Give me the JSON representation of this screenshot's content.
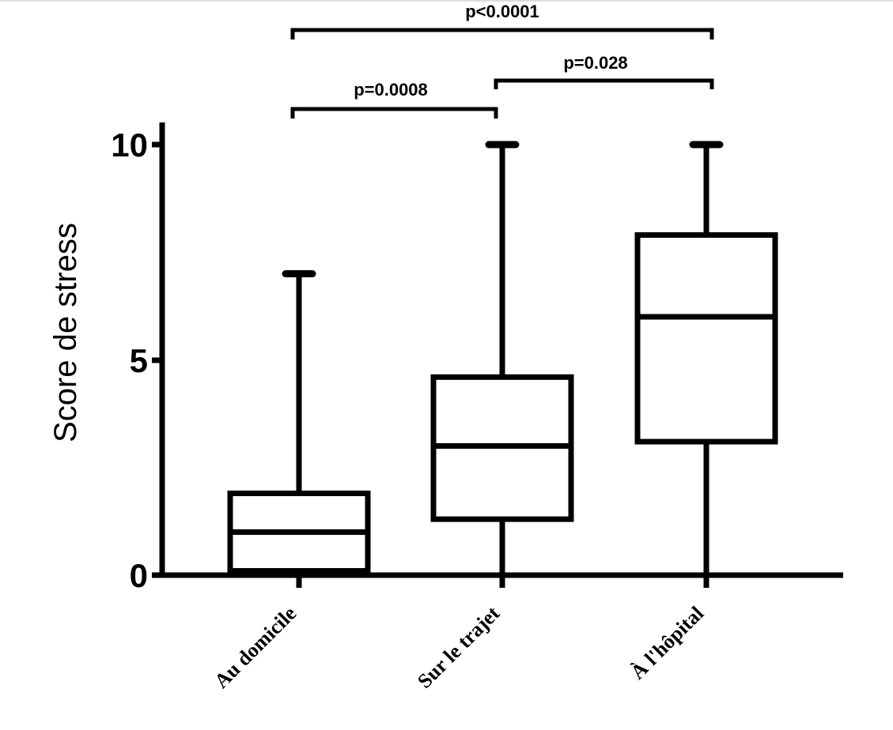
{
  "chart_data": {
    "type": "boxplot",
    "ylabel": "Score de stress",
    "xlabel": "",
    "ylim": [
      0,
      10
    ],
    "yticks": [
      "0",
      "5",
      "10"
    ],
    "categories": [
      "Au domicile",
      "Sur le trajet",
      "À l'hôpital"
    ],
    "boxes": [
      {
        "category": "Au domicile",
        "min": 0,
        "q1": 0.1,
        "median": 1,
        "q3": 1.9,
        "max": 7
      },
      {
        "category": "Sur le trajet",
        "min": 0,
        "q1": 1.3,
        "median": 3,
        "q3": 4.6,
        "max": 10
      },
      {
        "category": "À l'hôpital",
        "min": 0,
        "q1": 3.1,
        "median": 6,
        "q3": 7.9,
        "max": 10
      }
    ],
    "comparisons": [
      {
        "from": 0,
        "to": 1,
        "label": "p=0.0008"
      },
      {
        "from": 1,
        "to": 2,
        "label": "p=0.028"
      },
      {
        "from": 0,
        "to": 2,
        "label": "p<0.0001"
      }
    ],
    "grid": false,
    "legend": "none"
  }
}
